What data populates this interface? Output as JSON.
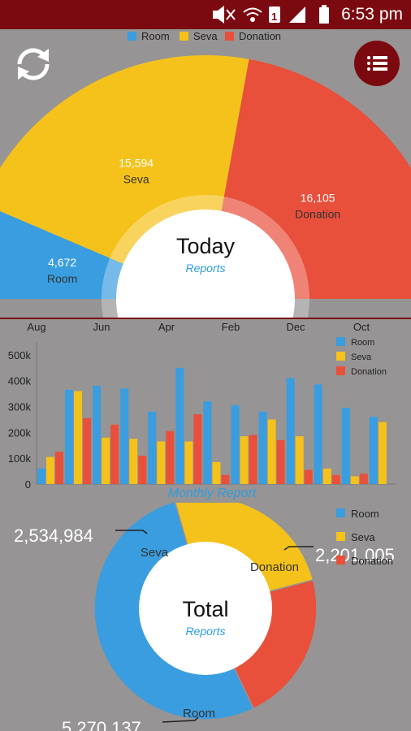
{
  "status_bar": {
    "time": "6:53 pm"
  },
  "today": {
    "legend": [
      {
        "label": "Room",
        "color": "#3a9ddf"
      },
      {
        "label": "Seva",
        "color": "#f5c21b"
      },
      {
        "label": "Donation",
        "color": "#e8503b"
      }
    ],
    "center_title": "Today",
    "center_subtitle": "Reports",
    "slices": [
      {
        "label": "Room",
        "value": "4,672",
        "amount": 4672,
        "color": "#3a9ddf"
      },
      {
        "label": "Seva",
        "value": "15,594",
        "amount": 15594,
        "color": "#f5c21b"
      },
      {
        "label": "Donation",
        "value": "16,105",
        "amount": 16105,
        "color": "#e8503b"
      }
    ]
  },
  "monthly": {
    "caption": "Monthly Report",
    "top_labels": [
      "Aug",
      "Jun",
      "Apr",
      "Feb",
      "Dec",
      "Oct"
    ],
    "y_ticks": [
      "0",
      "100k",
      "200k",
      "300k",
      "400k",
      "500k"
    ],
    "legend": [
      {
        "label": "Room",
        "color": "#3a9ddf"
      },
      {
        "label": "Seva",
        "color": "#f5c21b"
      },
      {
        "label": "Donation",
        "color": "#e8503b"
      }
    ]
  },
  "total": {
    "legend": [
      {
        "label": "Room",
        "color": "#3a9ddf"
      },
      {
        "label": "Seva",
        "color": "#f5c21b"
      },
      {
        "label": "Donation",
        "color": "#e8503b"
      }
    ],
    "center_title": "Total",
    "center_subtitle": "Reports",
    "slices": [
      {
        "label": "Room",
        "value": "5,270,137",
        "amount": 5270137,
        "color": "#3a9ddf"
      },
      {
        "label": "Seva",
        "value": "2,534,984",
        "amount": 2534984,
        "color": "#f5c21b"
      },
      {
        "label": "Donation",
        "value": "2,201,005",
        "amount": 2201005,
        "color": "#e8503b"
      }
    ]
  },
  "chart_data": [
    {
      "type": "pie",
      "categories": [
        "Room",
        "Seva",
        "Donation"
      ],
      "values": [
        4672,
        15594,
        16105
      ],
      "title": "Today"
    },
    {
      "type": "bar",
      "categories": [
        "1",
        "2",
        "3",
        "4",
        "5",
        "6",
        "7",
        "8",
        "9",
        "10",
        "11",
        "12",
        "13"
      ],
      "series": [
        {
          "name": "Room",
          "values": [
            60000,
            365000,
            380000,
            370000,
            280000,
            450000,
            320000,
            305000,
            280000,
            410000,
            385000,
            295000,
            260000
          ]
        },
        {
          "name": "Seva",
          "values": [
            105000,
            360000,
            180000,
            175000,
            165000,
            165000,
            85000,
            185000,
            250000,
            185000,
            60000,
            30000,
            240000
          ]
        },
        {
          "name": "Donation",
          "values": [
            125000,
            255000,
            230000,
            110000,
            205000,
            270000,
            35000,
            190000,
            170000,
            55000,
            35000,
            40000,
            0
          ]
        }
      ],
      "ylim": [
        0,
        550000
      ],
      "title": "Monthly Report",
      "legend": "top-right"
    },
    {
      "type": "pie",
      "categories": [
        "Room",
        "Seva",
        "Donation"
      ],
      "values": [
        5270137,
        2534984,
        2201005
      ],
      "title": "Total"
    }
  ]
}
